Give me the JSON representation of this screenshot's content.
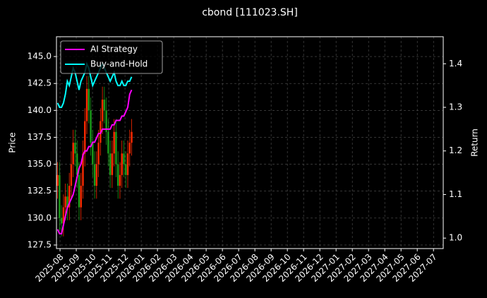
{
  "chart_data": {
    "type": "candlestick_returns",
    "title": "cbond [111023.SH]",
    "ylabel": "Price",
    "y2label": "Return",
    "x": [
      -0.15,
      -0.03,
      0.09,
      0.21,
      0.33,
      0.45,
      0.57,
      0.69,
      0.81,
      0.93,
      1.05,
      1.17,
      1.29,
      1.41,
      1.53,
      1.65,
      1.77,
      1.89,
      2.01,
      2.13,
      2.25,
      2.37,
      2.49,
      2.61,
      2.73,
      2.85,
      2.97,
      3.09,
      3.21,
      3.33,
      3.45,
      3.57,
      3.69,
      3.81,
      3.93,
      4.05,
      4.17,
      4.29,
      4.41
    ],
    "candles": {
      "up_color": "#ff2a00",
      "down_color": "#1a9e1a",
      "open": [
        133,
        134,
        130,
        129.5,
        131,
        132,
        131,
        133,
        135,
        137,
        136,
        134,
        131,
        133,
        136,
        139,
        142,
        140,
        137,
        135,
        133,
        135,
        137,
        139,
        141,
        140,
        138,
        136,
        134,
        136,
        138,
        135,
        133,
        134,
        136,
        135,
        134,
        136,
        137
      ],
      "high": [
        135.2,
        135.2,
        131.2,
        132.2,
        133.2,
        133.2,
        134.2,
        136.2,
        138.2,
        138.2,
        137.2,
        135.2,
        134.2,
        137.2,
        140.2,
        143.2,
        143.2,
        141.2,
        138.2,
        136.2,
        136.2,
        138.2,
        140.2,
        142.2,
        142.2,
        141.2,
        139.2,
        137.2,
        137.2,
        139.2,
        139.2,
        136.2,
        135.2,
        137.2,
        137.2,
        136.2,
        137.2,
        138.2,
        139.2
      ],
      "low": [
        131.8,
        128.8,
        128.3,
        128.3,
        129.8,
        129.8,
        129.8,
        131.8,
        133.8,
        134.8,
        132.8,
        129.8,
        129.8,
        131.8,
        134.8,
        137.8,
        138.8,
        135.8,
        133.8,
        131.8,
        131.8,
        133.8,
        135.8,
        137.8,
        138.8,
        136.8,
        134.8,
        132.8,
        132.8,
        134.8,
        133.8,
        131.8,
        131.8,
        132.8,
        133.8,
        132.8,
        132.8,
        134.8,
        135.8
      ],
      "close": [
        134,
        130,
        129.5,
        131,
        132,
        131,
        133,
        135,
        137,
        136,
        134,
        131,
        133,
        136,
        139,
        142,
        140,
        137,
        135,
        133,
        135,
        137,
        139,
        141,
        140,
        138,
        136,
        134,
        136,
        138,
        135,
        133,
        134,
        136,
        135,
        134,
        136,
        137,
        138
      ]
    },
    "series": [
      {
        "name": "AI Strategy",
        "color": "#ff00ff",
        "axis": "y2",
        "values": [
          1.02,
          1.01,
          1.01,
          1.03,
          1.05,
          1.07,
          1.08,
          1.09,
          1.1,
          1.12,
          1.14,
          1.16,
          1.17,
          1.19,
          1.2,
          1.2,
          1.21,
          1.21,
          1.22,
          1.22,
          1.23,
          1.24,
          1.24,
          1.25,
          1.25,
          1.25,
          1.25,
          1.25,
          1.26,
          1.26,
          1.27,
          1.27,
          1.27,
          1.28,
          1.28,
          1.29,
          1.3,
          1.33,
          1.34
        ]
      },
      {
        "name": "Buy-and-Hold",
        "color": "#00ffff",
        "axis": "y2",
        "values": [
          1.31,
          1.3,
          1.3,
          1.31,
          1.33,
          1.36,
          1.35,
          1.37,
          1.39,
          1.38,
          1.36,
          1.34,
          1.36,
          1.37,
          1.38,
          1.4,
          1.39,
          1.37,
          1.35,
          1.36,
          1.37,
          1.38,
          1.39,
          1.4,
          1.39,
          1.38,
          1.37,
          1.36,
          1.37,
          1.38,
          1.36,
          1.35,
          1.35,
          1.36,
          1.35,
          1.35,
          1.36,
          1.36,
          1.37
        ]
      }
    ],
    "xlim": [
      -0.22,
      23.6
    ],
    "xticks": [
      {
        "value": 0,
        "label": "2025-08"
      },
      {
        "value": 1,
        "label": "2025-09"
      },
      {
        "value": 2,
        "label": "2025-10"
      },
      {
        "value": 3,
        "label": "2025-11"
      },
      {
        "value": 4,
        "label": "2025-12"
      },
      {
        "value": 5,
        "label": "2026-01"
      },
      {
        "value": 6,
        "label": "2026-02"
      },
      {
        "value": 7,
        "label": "2026-03"
      },
      {
        "value": 8,
        "label": "2026-04"
      },
      {
        "value": 9,
        "label": "2026-05"
      },
      {
        "value": 10,
        "label": "2026-06"
      },
      {
        "value": 11,
        "label": "2026-07"
      },
      {
        "value": 12,
        "label": "2026-08"
      },
      {
        "value": 13,
        "label": "2026-09"
      },
      {
        "value": 14,
        "label": "2026-10"
      },
      {
        "value": 15,
        "label": "2026-11"
      },
      {
        "value": 16,
        "label": "2026-12"
      },
      {
        "value": 17,
        "label": "2027-01"
      },
      {
        "value": 18,
        "label": "2027-02"
      },
      {
        "value": 19,
        "label": "2027-03"
      },
      {
        "value": 20,
        "label": "2027-04"
      },
      {
        "value": 21,
        "label": "2027-05"
      },
      {
        "value": 22,
        "label": "2027-06"
      },
      {
        "value": 23,
        "label": "2027-07"
      }
    ],
    "ylim": [
      127.17,
      146.84
    ],
    "yticks": [
      127.5,
      {
        "value": 130,
        "label": "130.0"
      },
      132.5,
      {
        "value": 135,
        "label": "135.0"
      },
      137.5,
      {
        "value": 140,
        "label": "140.0"
      },
      142.5,
      {
        "value": 145,
        "label": "145.0"
      }
    ],
    "y2lim": [
      0.976,
      1.462
    ],
    "y2ticks": [
      {
        "value": 1,
        "label": "1.0"
      },
      1.1,
      1.2,
      1.3,
      1.4
    ],
    "grid": true,
    "legend": "upper left"
  }
}
